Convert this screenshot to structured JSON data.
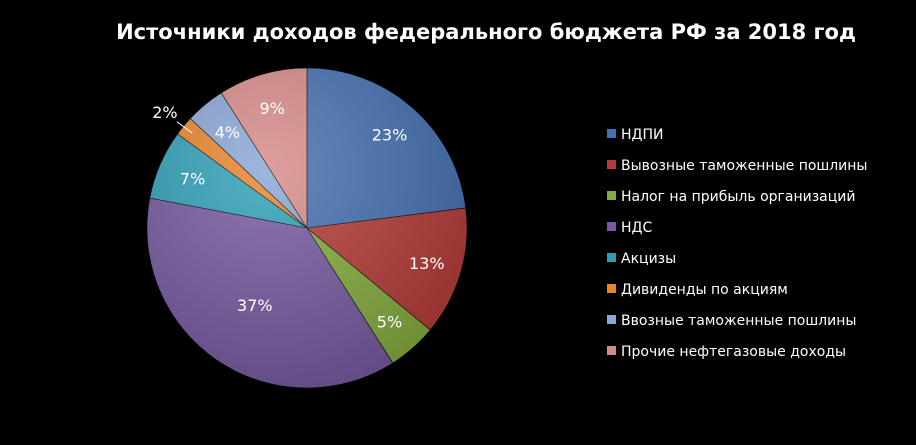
{
  "chart_data": {
    "type": "pie",
    "title": "Источники доходов федерального бюджета РФ за 2018 год",
    "legend_position": "right",
    "slices": [
      {
        "name": "НДПИ",
        "value": 23,
        "label": "23%",
        "color": "#4270b2"
      },
      {
        "name": "Вывозные таможенные пошлины",
        "value": 13,
        "label": "13%",
        "color": "#b53b37"
      },
      {
        "name": "Налог на прибыль организаций",
        "value": 5,
        "label": "5%",
        "color": "#85ac3e"
      },
      {
        "name": "НДС",
        "value": 37,
        "label": "37%",
        "color": "#7659a0"
      },
      {
        "name": "Акцизы",
        "value": 7,
        "label": "7%",
        "color": "#2f9fb8"
      },
      {
        "name": "Дивиденды по акциям",
        "value": 2,
        "label": "2%",
        "color": "#e9852a"
      },
      {
        "name": "Ввозные таможенные пошлины",
        "value": 4,
        "label": "4%",
        "color": "#8aa7d6"
      },
      {
        "name": "Прочие нефтегазовые доходы",
        "value": 9,
        "label": "9%",
        "color": "#d78a89"
      }
    ]
  }
}
